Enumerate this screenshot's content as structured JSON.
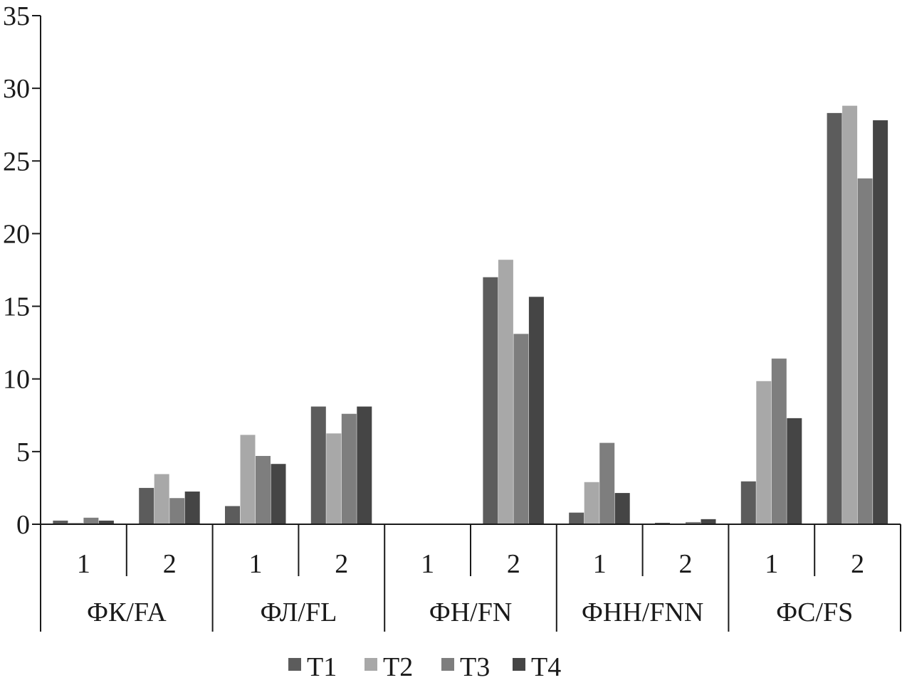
{
  "chart_data": {
    "type": "bar",
    "title": "",
    "xlabel": "",
    "ylabel": "",
    "ylim": [
      0,
      35
    ],
    "yticks": [
      0,
      5,
      10,
      15,
      20,
      25,
      30,
      35
    ],
    "grid": false,
    "legend_position": "bottom",
    "groups": [
      {
        "label": "ФК/FA",
        "subcategories": [
          "1",
          "2"
        ]
      },
      {
        "label": "ФЛ/FL",
        "subcategories": [
          "1",
          "2"
        ]
      },
      {
        "label": "ФН/FN",
        "subcategories": [
          "1",
          "2"
        ]
      },
      {
        "label": "ФНН/FNN",
        "subcategories": [
          "1",
          "2"
        ]
      },
      {
        "label": "ФС/FS",
        "subcategories": [
          "1",
          "2"
        ]
      }
    ],
    "series": [
      {
        "name": "T1",
        "color": "#5c5c5c",
        "values": [
          0.25,
          2.5,
          1.25,
          8.1,
          0.0,
          17.0,
          0.8,
          0.1,
          2.95,
          28.3
        ]
      },
      {
        "name": "T2",
        "color": "#a8a8a8",
        "values": [
          0.1,
          3.45,
          6.15,
          6.25,
          0.0,
          18.2,
          2.9,
          0.0,
          9.85,
          28.8
        ]
      },
      {
        "name": "T3",
        "color": "#7e7e7e",
        "values": [
          0.45,
          1.8,
          4.7,
          7.6,
          0.05,
          13.1,
          5.6,
          0.15,
          11.4,
          23.8
        ]
      },
      {
        "name": "T4",
        "color": "#454545",
        "values": [
          0.25,
          2.25,
          4.15,
          8.1,
          0.0,
          15.65,
          2.15,
          0.35,
          7.3,
          27.8
        ]
      }
    ]
  }
}
